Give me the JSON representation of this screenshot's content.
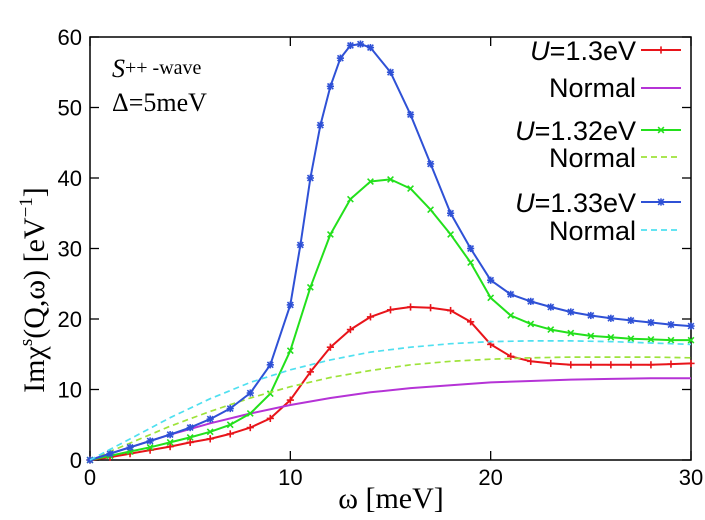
{
  "chart_data": {
    "type": "line",
    "xlabel": "ω [meV]",
    "ylabel_parts": {
      "main": "Imχ",
      "sup": "s",
      "args": "(Q,ω) [eV",
      "sup2": "−1",
      "close": "]"
    },
    "xlim": [
      0,
      30
    ],
    "ylim": [
      0,
      60
    ],
    "xticks": [
      "0",
      "10",
      "20",
      "30"
    ],
    "yticks": [
      "0",
      "10",
      "20",
      "30",
      "40",
      "50",
      "60"
    ],
    "annotation": {
      "line1_italic": "S",
      "line1_rest": "++ -wave",
      "line2": "Δ=5meV"
    },
    "legend_position": "top-right",
    "series": [
      {
        "name": "U=1.3eV",
        "label_italic": "U",
        "label_rest": "=1.3eV",
        "color": "#e8141a",
        "style": "solid-marker",
        "marker": "plus",
        "x": [
          0,
          1,
          2,
          3,
          4,
          5,
          6,
          7,
          8,
          9,
          10,
          11,
          12,
          13,
          14,
          15,
          16,
          17,
          18,
          19,
          20,
          21,
          22,
          23,
          24,
          25,
          26,
          27,
          28,
          29,
          30
        ],
        "y": [
          0,
          0.4,
          0.9,
          1.4,
          1.9,
          2.5,
          3.0,
          3.7,
          4.6,
          5.9,
          8.5,
          12.5,
          16,
          18.5,
          20.3,
          21.3,
          21.7,
          21.6,
          21.2,
          19.6,
          16.4,
          14.7,
          14.0,
          13.7,
          13.5,
          13.5,
          13.5,
          13.5,
          13.5,
          13.6,
          13.7
        ]
      },
      {
        "name": "Normal (U=1.3eV)",
        "label": "Normal",
        "color": "#b533d6",
        "style": "solid",
        "x": [
          0,
          2,
          4,
          6,
          8,
          10,
          12,
          14,
          16,
          18,
          20,
          22,
          24,
          26,
          28,
          30
        ],
        "y": [
          0,
          1.8,
          3.6,
          5.2,
          6.6,
          7.8,
          8.8,
          9.6,
          10.2,
          10.6,
          11.0,
          11.2,
          11.4,
          11.5,
          11.6,
          11.6
        ]
      },
      {
        "name": "U=1.32eV",
        "label_italic": "U",
        "label_rest": "=1.32eV",
        "color": "#23e01c",
        "style": "solid-marker",
        "marker": "x",
        "x": [
          0,
          1,
          2,
          3,
          4,
          5,
          6,
          7,
          8,
          9,
          10,
          11,
          12,
          13,
          14,
          15,
          16,
          17,
          18,
          19,
          20,
          21,
          22,
          23,
          24,
          25,
          26,
          27,
          28,
          29,
          30
        ],
        "y": [
          0,
          0.6,
          1.2,
          1.8,
          2.5,
          3.2,
          4.0,
          5.0,
          6.6,
          9.4,
          15.5,
          24.5,
          32,
          37,
          39.5,
          39.8,
          38.5,
          35.5,
          32,
          28,
          23,
          20.5,
          19.3,
          18.5,
          18.0,
          17.6,
          17.4,
          17.2,
          17.1,
          17.0,
          17.0
        ]
      },
      {
        "name": "Normal (U=1.32eV)",
        "label": "Normal",
        "color": "#9ee33a",
        "style": "dashed",
        "x": [
          0,
          2,
          4,
          6,
          8,
          10,
          12,
          14,
          16,
          18,
          20,
          22,
          24,
          26,
          28,
          30
        ],
        "y": [
          0,
          2.4,
          4.8,
          6.9,
          8.8,
          10.4,
          11.7,
          12.7,
          13.5,
          14.0,
          14.3,
          14.5,
          14.6,
          14.6,
          14.6,
          14.5
        ]
      },
      {
        "name": "U=1.33eV",
        "label_italic": "U",
        "label_rest": "=1.33eV",
        "color": "#2f51d6",
        "style": "solid-marker",
        "marker": "star",
        "x": [
          0,
          1,
          2,
          3,
          4,
          5,
          6,
          7,
          8,
          9,
          10,
          10.5,
          11,
          11.5,
          12,
          12.5,
          13,
          13.5,
          14,
          15,
          16,
          17,
          18,
          19,
          20,
          21,
          22,
          23,
          24,
          25,
          26,
          27,
          28,
          29,
          30
        ],
        "y": [
          0,
          0.9,
          1.8,
          2.7,
          3.6,
          4.6,
          5.8,
          7.3,
          9.5,
          13.5,
          22,
          30.5,
          40,
          47.5,
          53,
          57,
          58.8,
          59,
          58.5,
          55,
          49,
          42,
          35,
          30,
          25.5,
          23.5,
          22.5,
          21.7,
          21.0,
          20.5,
          20.1,
          19.8,
          19.5,
          19.2,
          19.0
        ]
      },
      {
        "name": "Normal (U=1.33eV)",
        "label": "Normal",
        "color": "#4fe0f0",
        "style": "dashed",
        "x": [
          0,
          2,
          4,
          6,
          8,
          10,
          12,
          14,
          16,
          18,
          20,
          22,
          24,
          26,
          28,
          30
        ],
        "y": [
          0,
          3.0,
          6.0,
          8.7,
          11.0,
          12.8,
          14.2,
          15.3,
          16.0,
          16.5,
          16.8,
          16.9,
          16.9,
          16.8,
          16.6,
          16.4
        ]
      }
    ]
  }
}
